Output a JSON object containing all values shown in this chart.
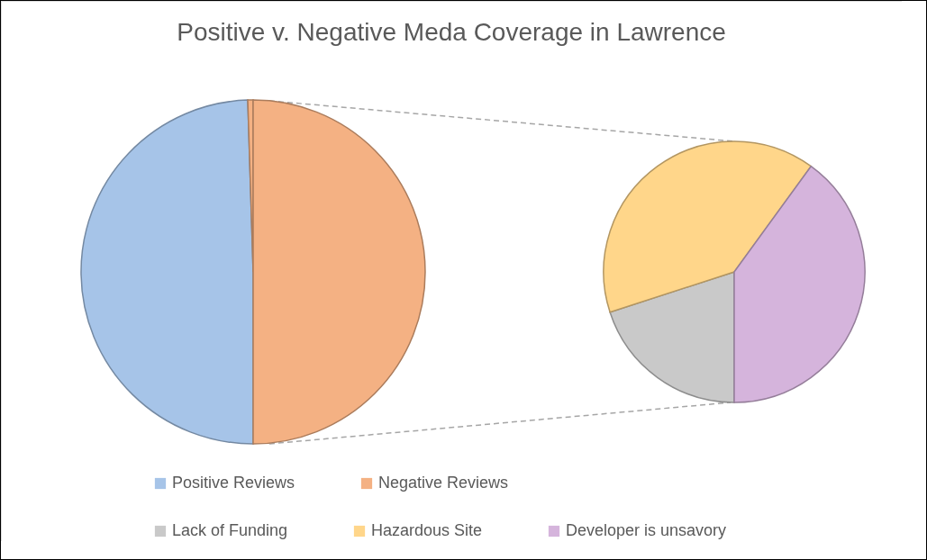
{
  "chart_data": [
    {
      "type": "pie",
      "title": "Positive v. Negative Meda Coverage in Lawrence",
      "categories": [
        "Positive Reviews",
        "Negative Reviews",
        null
      ],
      "values": [
        49.5,
        0.5,
        50
      ],
      "colors": [
        "#a6c4e8",
        "#f4b183",
        "#f4b183"
      ],
      "legend": "bottom"
    },
    {
      "type": "pie",
      "categories": [
        "Lack of Funding",
        "Hazardous Site",
        "Developer is unsavory"
      ],
      "values": [
        20,
        40,
        40
      ],
      "colors": [
        "#c9c9c9",
        "#ffd68a",
        "#d5b4dc"
      ],
      "legend": "bottom"
    }
  ]
}
